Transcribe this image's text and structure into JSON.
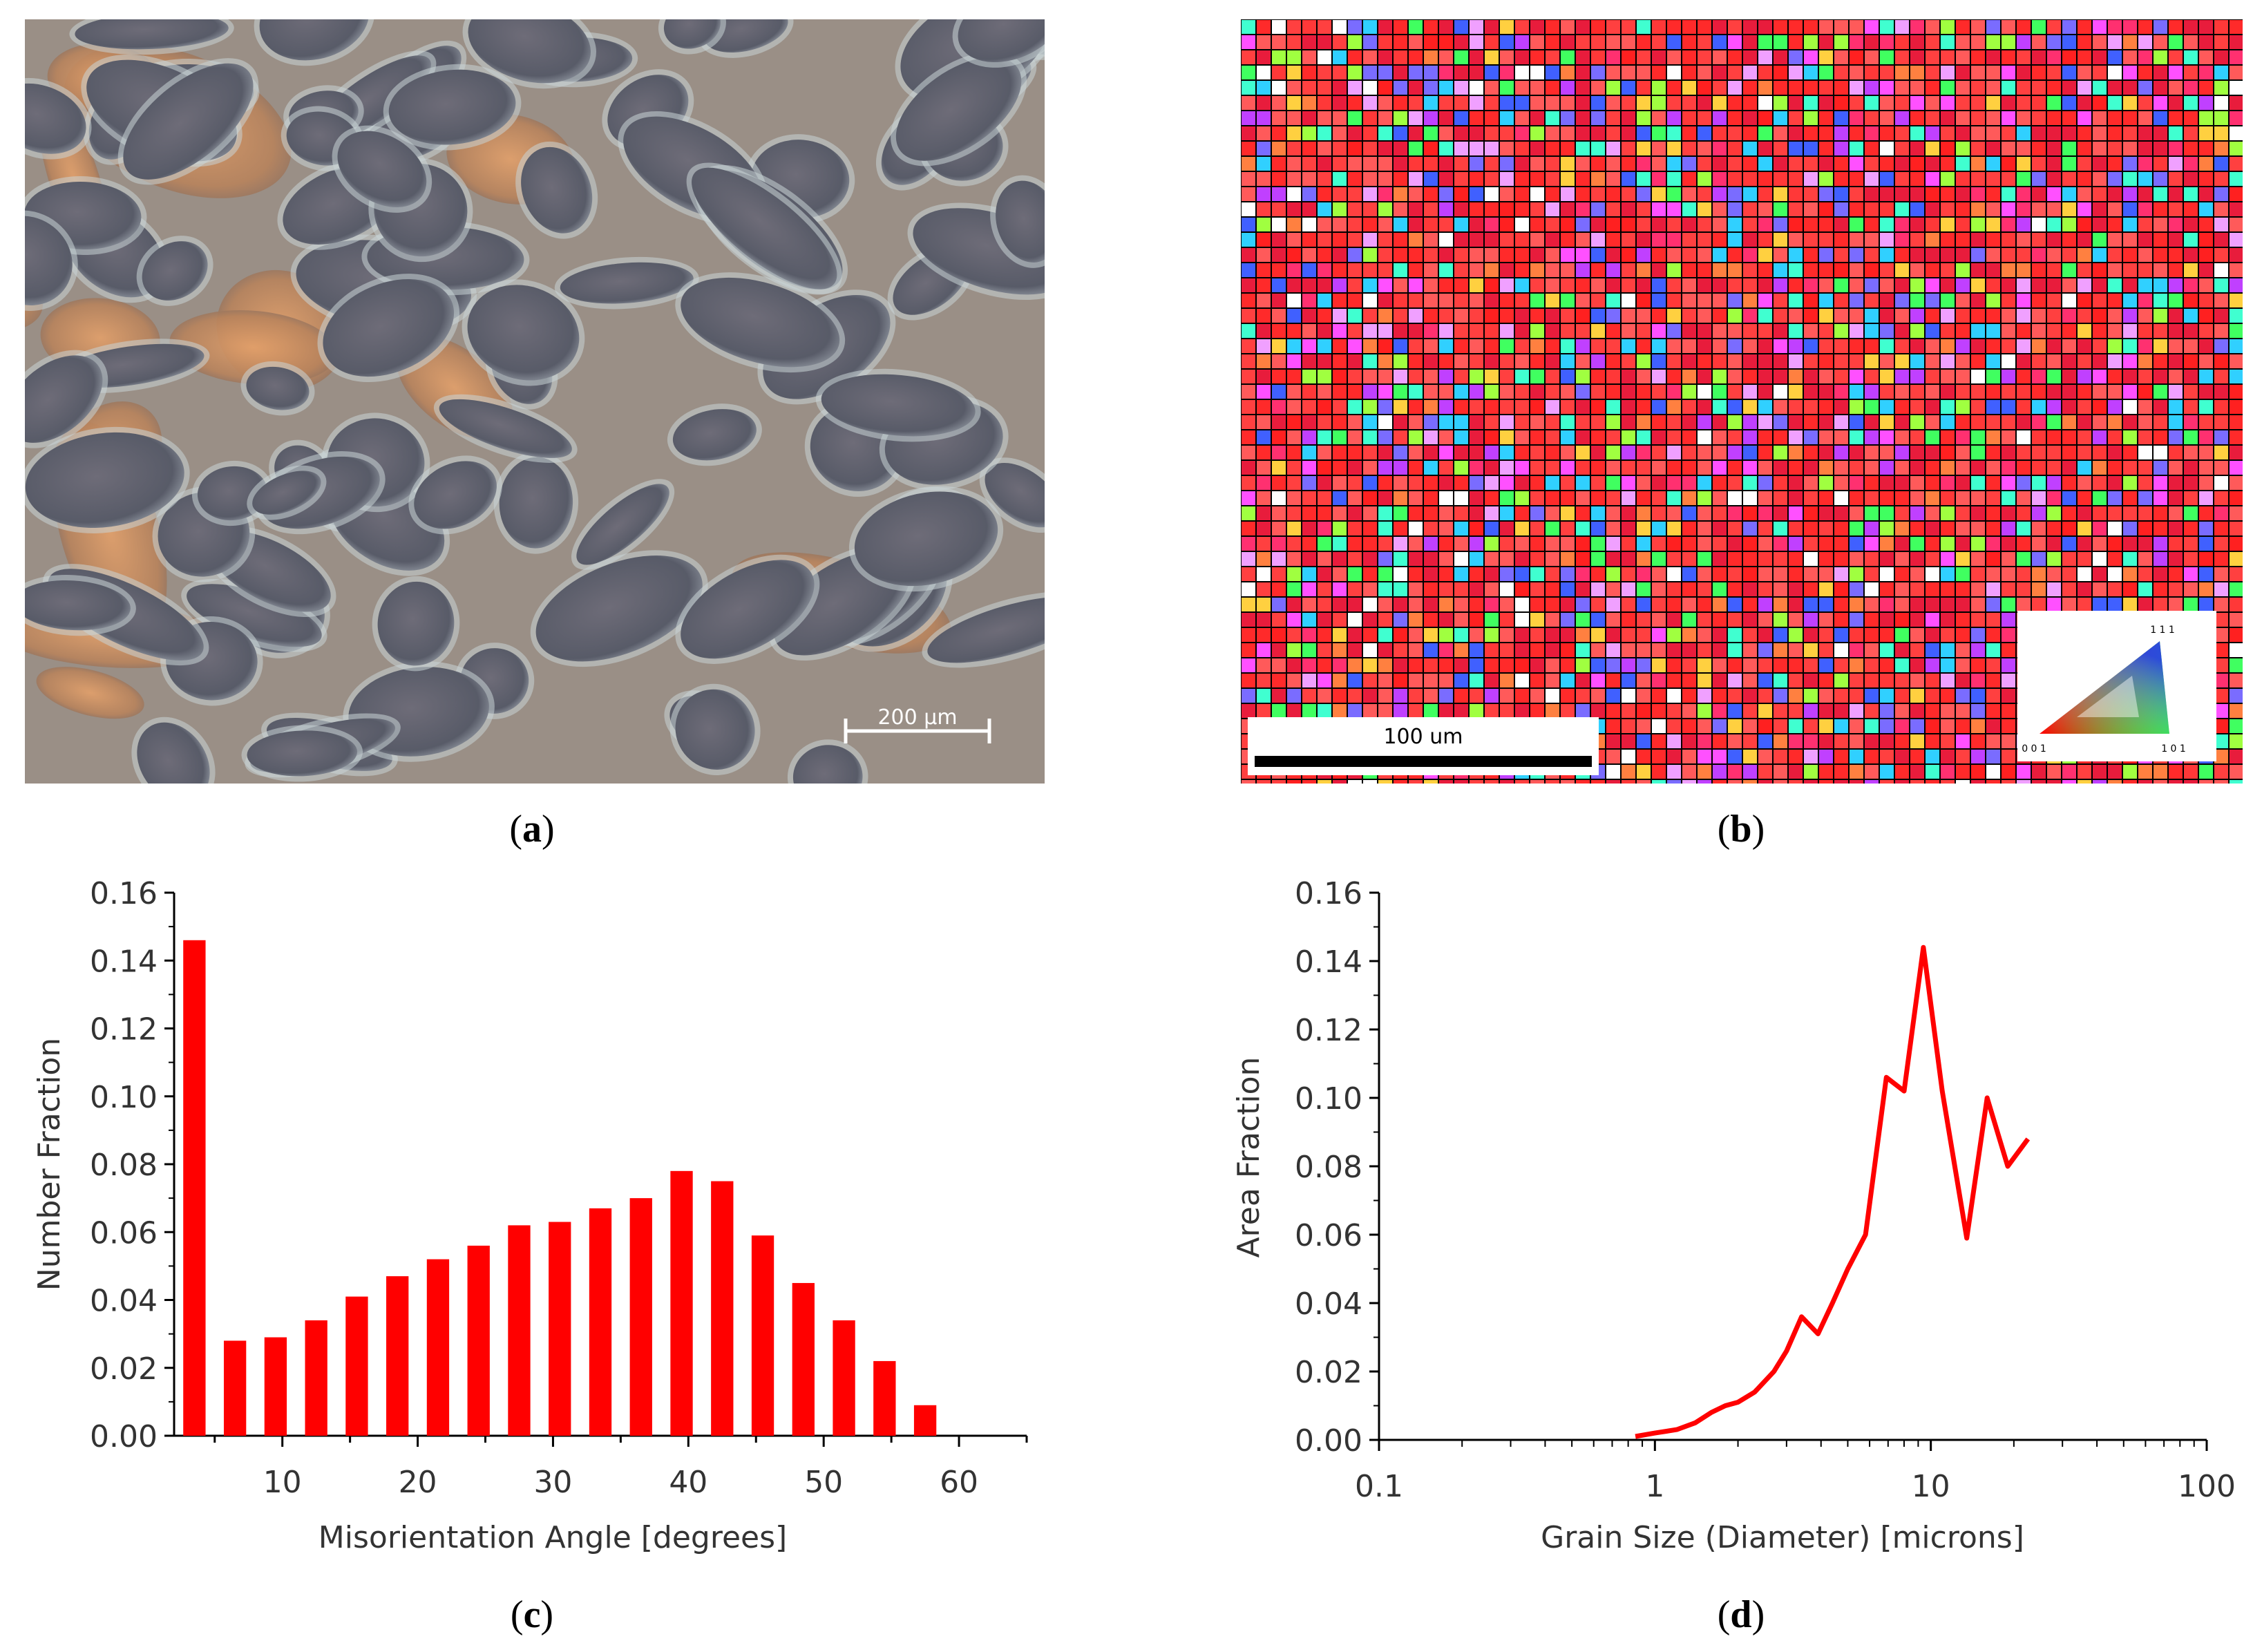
{
  "panels": {
    "a": {
      "caption_open": "(",
      "caption_letter": "a",
      "caption_close": ")",
      "scale_label": "200 μm"
    },
    "b": {
      "caption_open": "(",
      "caption_letter": "b",
      "caption_close": ")",
      "scale_label": "100 um",
      "legend": {
        "top": "1 1 1",
        "left": "0 0 1",
        "right": "1 0 1"
      }
    },
    "c": {
      "caption_open": "(",
      "caption_letter": "c",
      "caption_close": ")"
    },
    "d": {
      "caption_open": "(",
      "caption_letter": "d",
      "caption_close": ")"
    }
  },
  "chart_data": [
    {
      "id": "c",
      "type": "bar",
      "xlabel": "Misorientation Angle [degrees]",
      "ylabel": "Number Fraction",
      "xlim": [
        2,
        65
      ],
      "ylim": [
        0,
        0.16
      ],
      "xticks": [
        10,
        20,
        30,
        40,
        50,
        60
      ],
      "xtick_labels": [
        "10",
        "20",
        "30",
        "40",
        "50",
        "60"
      ],
      "yticks": [
        0,
        0.02,
        0.04,
        0.06,
        0.08,
        0.1,
        0.12,
        0.14,
        0.16
      ],
      "ytick_labels": [
        "0.00",
        "0.02",
        "0.04",
        "0.06",
        "0.08",
        "0.10",
        "0.12",
        "0.14",
        "0.16"
      ],
      "x": [
        3.5,
        6.5,
        9.5,
        12.5,
        15.5,
        18.5,
        21.5,
        24.5,
        27.5,
        30.5,
        33.5,
        36.5,
        39.5,
        42.5,
        45.5,
        48.5,
        51.5,
        54.5,
        57.5,
        60.5
      ],
      "values": [
        0.146,
        0.028,
        0.029,
        0.034,
        0.041,
        0.047,
        0.052,
        0.056,
        0.062,
        0.063,
        0.067,
        0.07,
        0.078,
        0.075,
        0.059,
        0.045,
        0.034,
        0.022,
        0.009,
        0.0
      ],
      "color": "#ff0000"
    },
    {
      "id": "d",
      "type": "line",
      "xscale": "log",
      "xlabel": "Grain Size (Diameter) [microns]",
      "ylabel": "Area Fraction",
      "xlim": [
        0.1,
        100
      ],
      "ylim": [
        0,
        0.16
      ],
      "xticks": [
        0.1,
        1,
        10,
        100
      ],
      "xtick_labels": [
        "0.1",
        "1",
        "10",
        "100"
      ],
      "yticks": [
        0,
        0.02,
        0.04,
        0.06,
        0.08,
        0.1,
        0.12,
        0.14,
        0.16
      ],
      "ytick_labels": [
        "0.00",
        "0.02",
        "0.04",
        "0.06",
        "0.08",
        "0.10",
        "0.12",
        "0.14",
        "0.16"
      ],
      "x": [
        0.85,
        1.0,
        1.2,
        1.4,
        1.6,
        1.8,
        2.0,
        2.3,
        2.7,
        3.0,
        3.4,
        3.9,
        4.4,
        5.0,
        5.8,
        6.9,
        8.0,
        9.4,
        11.0,
        13.5,
        16.0,
        19.0,
        22.5
      ],
      "values": [
        0.001,
        0.002,
        0.003,
        0.005,
        0.008,
        0.01,
        0.011,
        0.014,
        0.02,
        0.026,
        0.036,
        0.031,
        0.04,
        0.05,
        0.06,
        0.106,
        0.102,
        0.144,
        0.102,
        0.059,
        0.1,
        0.08,
        0.088
      ],
      "color": "#ff0000"
    }
  ]
}
